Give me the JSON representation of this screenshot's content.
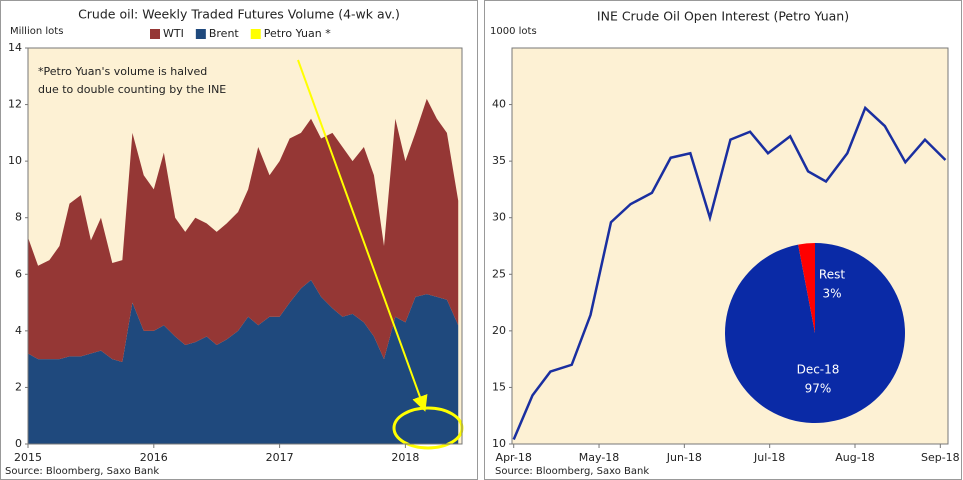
{
  "chart_data": [
    {
      "type": "area",
      "title": "Crude oil: Weekly Traded Futures Volume (4-wk av.)",
      "ylabel": "Million lots",
      "annotations": [
        "*Petro Yuan's volume is halved",
        "due to double counting by the INE"
      ],
      "source": "Source: Bloomberg, Saxo Bank",
      "x": [
        2015,
        2015.08,
        2015.17,
        2015.25,
        2015.33,
        2015.42,
        2015.5,
        2015.58,
        2015.67,
        2015.75,
        2015.83,
        2015.92,
        2016,
        2016.08,
        2016.17,
        2016.25,
        2016.33,
        2016.42,
        2016.5,
        2016.58,
        2016.67,
        2016.75,
        2016.83,
        2016.92,
        2017,
        2017.08,
        2017.17,
        2017.25,
        2017.33,
        2017.42,
        2017.5,
        2017.58,
        2017.67,
        2017.75,
        2017.83,
        2017.92,
        2018,
        2018.08,
        2018.17,
        2018.25,
        2018.33,
        2018.42
      ],
      "series": [
        {
          "name": "WTI",
          "color": "#953735",
          "stacked": true,
          "values": [
            4.1,
            3.3,
            3.5,
            4.0,
            5.4,
            5.7,
            4.0,
            4.7,
            3.4,
            3.6,
            6.0,
            5.5,
            5.0,
            6.1,
            4.2,
            4.0,
            4.4,
            4.0,
            4.0,
            4.1,
            4.2,
            4.5,
            6.3,
            5.0,
            5.5,
            5.8,
            5.5,
            5.7,
            5.6,
            6.2,
            6.0,
            5.4,
            6.2,
            5.7,
            4.0,
            7.0,
            5.7,
            5.8,
            6.9,
            6.3,
            5.9,
            4.4
          ]
        },
        {
          "name": "Brent",
          "color": "#1f497d",
          "stacked": true,
          "values": [
            3.2,
            3.0,
            3.0,
            3.0,
            3.1,
            3.1,
            3.2,
            3.3,
            3.0,
            2.9,
            5.0,
            4.0,
            4.0,
            4.2,
            3.8,
            3.5,
            3.6,
            3.8,
            3.5,
            3.7,
            4.0,
            4.5,
            4.2,
            4.5,
            4.5,
            5.0,
            5.5,
            5.8,
            5.2,
            4.8,
            4.5,
            4.6,
            4.3,
            3.8,
            3.0,
            4.5,
            4.3,
            5.2,
            5.3,
            5.2,
            5.1,
            4.2
          ]
        },
        {
          "name": "Petro Yuan *",
          "color": "#ffff00",
          "stacked": false,
          "values": [
            null,
            null,
            null,
            null,
            null,
            null,
            null,
            null,
            null,
            null,
            null,
            null,
            null,
            null,
            null,
            null,
            null,
            null,
            null,
            null,
            null,
            null,
            null,
            null,
            null,
            null,
            null,
            null,
            null,
            null,
            null,
            null,
            null,
            null,
            null,
            null,
            null,
            0.2,
            0.4,
            0.6,
            0.7,
            0.8
          ]
        }
      ],
      "xlim": [
        2015,
        2018.45
      ],
      "xticks": [
        2015,
        2016,
        2017,
        2018
      ],
      "ylim": [
        0,
        14
      ],
      "yticks": [
        0,
        2,
        4,
        6,
        8,
        10,
        12,
        14
      ],
      "grid": false,
      "legend": "top"
    },
    {
      "type": "line",
      "title": "INE Crude Oil Open Interest (Petro Yuan)",
      "ylabel": "1000 lots",
      "source": "Source: Bloomberg, Saxo Bank",
      "x": [
        4.0,
        4.22,
        4.43,
        4.68,
        4.9,
        5.14,
        5.37,
        5.62,
        5.84,
        6.07,
        6.3,
        6.54,
        6.77,
        6.98,
        7.24,
        7.45,
        7.66,
        7.91,
        8.12,
        8.35,
        8.59,
        8.82,
        9.06
      ],
      "series": [
        {
          "name": "Open interest",
          "color": "#1a2fa0",
          "values": [
            10.4,
            14.3,
            16.4,
            17.0,
            21.4,
            29.6,
            31.2,
            32.2,
            35.3,
            35.7,
            30.0,
            36.9,
            37.6,
            35.7,
            37.2,
            34.1,
            33.2,
            35.7,
            39.7,
            38.1,
            34.9,
            36.9,
            35.1
          ]
        }
      ],
      "xlim": [
        3.98,
        9.09
      ],
      "xticks": [
        {
          "value": 4,
          "label": "Apr-18"
        },
        {
          "value": 5,
          "label": "May-18"
        },
        {
          "value": 6,
          "label": "Jun-18"
        },
        {
          "value": 7,
          "label": "Jul-18"
        },
        {
          "value": 8,
          "label": "Aug-18"
        },
        {
          "value": 9,
          "label": "Sep-18"
        }
      ],
      "ylim": [
        10,
        45
      ],
      "yticks": [
        10,
        15,
        20,
        25,
        30,
        35,
        40
      ],
      "grid": false,
      "inset": {
        "type": "pie",
        "categories": [
          "Dec-18",
          "Rest"
        ],
        "values": [
          97,
          3
        ],
        "value_labels": [
          "97%",
          "3%"
        ],
        "colors": [
          "#0a2aa6",
          "#ff0000"
        ]
      }
    }
  ]
}
